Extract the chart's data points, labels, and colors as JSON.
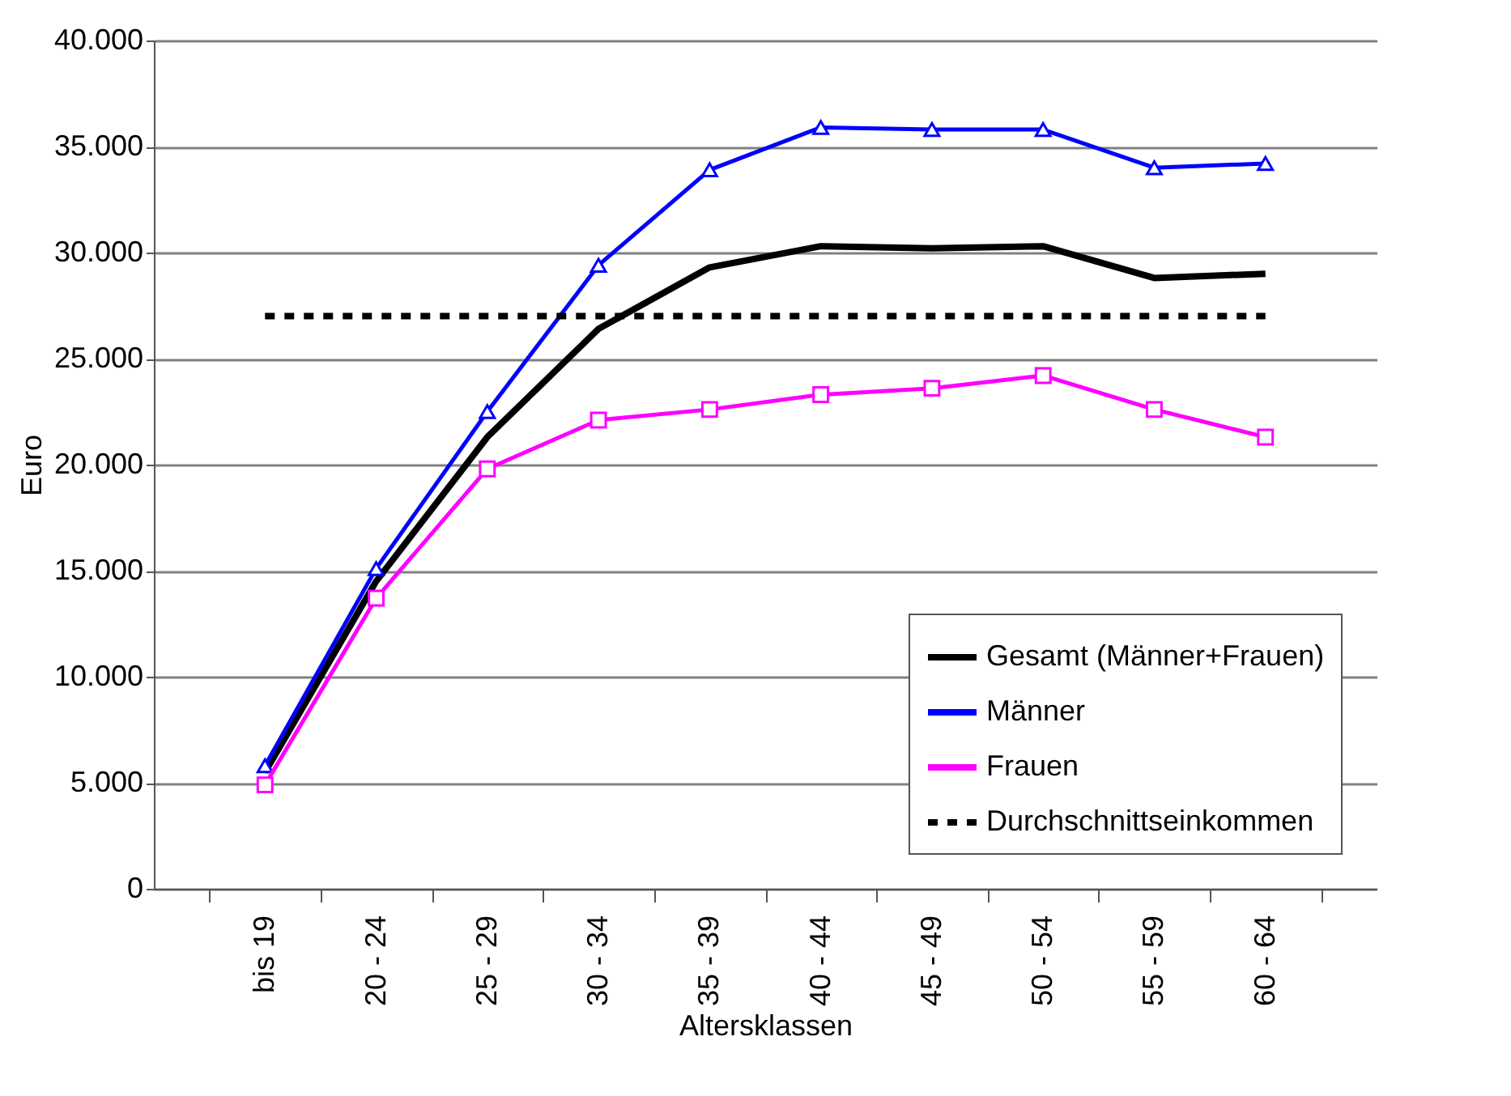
{
  "chart_data": {
    "type": "line",
    "xlabel": "Altersklassen",
    "ylabel": "Euro",
    "categories": [
      "bis 19",
      "20 - 24",
      "25 - 29",
      "30 - 34",
      "35 - 39",
      "40 - 44",
      "45 - 49",
      "50 - 54",
      "55 - 59",
      "60 - 64"
    ],
    "ylim": [
      0,
      40000
    ],
    "yticks": [
      0,
      {
        "value": 5000,
        "label": "5.000"
      },
      {
        "value": 10000,
        "label": "10.000"
      },
      {
        "value": 15000,
        "label": "15.000"
      },
      {
        "value": 20000,
        "label": "20.000"
      },
      {
        "value": 25000,
        "label": "25.000"
      },
      {
        "value": 30000,
        "label": "30.000"
      },
      {
        "value": 35000,
        "label": "35.000"
      },
      {
        "value": 40000,
        "label": "40.000"
      }
    ],
    "grid": "y",
    "legend": "bottom right",
    "series": [
      {
        "name": "Gesamt (Männer+Frauen)",
        "color": "#000000",
        "marker": "none",
        "line_style": "solid",
        "values": [
          5500,
          14500,
          21300,
          26400,
          29300,
          30300,
          30200,
          30300,
          28800,
          29000
        ]
      },
      {
        "name": "Männer",
        "color": "#0000ff",
        "marker": "triangle",
        "line_style": "solid",
        "values": [
          5800,
          15100,
          22500,
          29400,
          33900,
          35900,
          35800,
          35800,
          34000,
          34200
        ]
      },
      {
        "name": "Frauen",
        "color": "#ff00ff",
        "marker": "square",
        "line_style": "solid",
        "values": [
          4900,
          13700,
          19800,
          22100,
          22600,
          23300,
          23600,
          24200,
          22600,
          21300
        ]
      },
      {
        "name": "Durchschnittseinkommen",
        "color": "#000000",
        "marker": "none",
        "line_style": "dotted",
        "values": [
          27000,
          27000,
          27000,
          27000,
          27000,
          27000,
          27000,
          27000,
          27000,
          27000
        ]
      }
    ]
  }
}
